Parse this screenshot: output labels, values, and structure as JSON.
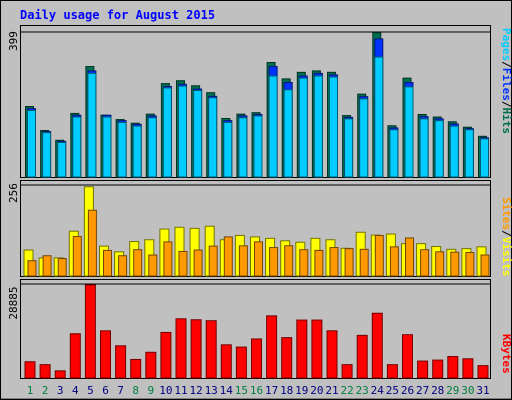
{
  "chart_data": {
    "type": "bar",
    "title": "Daily usage for August 2015",
    "days": [
      "1",
      "2",
      "3",
      "4",
      "5",
      "6",
      "7",
      "8",
      "9",
      "10",
      "11",
      "12",
      "13",
      "14",
      "15",
      "16",
      "17",
      "18",
      "19",
      "20",
      "21",
      "22",
      "23",
      "24",
      "25",
      "26",
      "27",
      "28",
      "29",
      "30",
      "31"
    ],
    "weekend_days": [
      "1",
      "2",
      "8",
      "9",
      "15",
      "16",
      "22",
      "23",
      "29",
      "30"
    ],
    "panels": [
      {
        "id": "hits_files_pages",
        "ymax_label": "399",
        "ymax": 399,
        "series": [
          {
            "name": "Hits",
            "color": "#006f4f",
            "values": [
              194,
              128,
              101,
              175,
              304,
              170,
              158,
              148,
              173,
              257,
              265,
              251,
              232,
              161,
              173,
              177,
              315,
              270,
              288,
              292,
              288,
              169,
              228,
              397,
              141,
              272,
              172,
              165,
              152,
              137,
              112
            ]
          },
          {
            "name": "Files",
            "color": "#0033ff",
            "values": [
              188,
              125,
              98,
              170,
              292,
              170,
              155,
              145,
              168,
              249,
              255,
              242,
              222,
              155,
              168,
              172,
              304,
              260,
              278,
              285,
              281,
              164,
              221,
              380,
              135,
              260,
              166,
              160,
              146,
              133,
              108
            ]
          },
          {
            "name": "Pages",
            "color": "#00ccff",
            "values": [
              183,
              122,
              95,
              165,
              285,
              165,
              150,
              140,
              163,
              245,
              250,
              238,
              218,
              150,
              163,
              168,
              278,
              240,
              272,
              278,
              275,
              160,
              215,
              330,
              130,
              248,
              160,
              155,
              140,
              130,
              105
            ]
          }
        ],
        "legend": [
          "Pages",
          "/",
          "Files",
          "/",
          "Hits"
        ]
      },
      {
        "id": "sites_visits",
        "ymax_label": "256",
        "ymax": 256,
        "series": [
          {
            "name": "Visits",
            "color": "#ffff00",
            "values": [
              73,
              51,
              51,
              126,
              251,
              84,
              68,
              97,
              102,
              132,
              137,
              134,
              140,
              102,
              114,
              110,
              106,
              99,
              95,
              106,
              102,
              78,
              123,
              115,
              118,
              91,
              91,
              83,
              75,
              77,
              82
            ]
          },
          {
            "name": "Sites",
            "color": "#ff9900",
            "values": [
              43,
              57,
              49,
              111,
              185,
              72,
              57,
              74,
              59,
              96,
              69,
              73,
              84,
              110,
              85,
              96,
              80,
              85,
              74,
              72,
              80,
              77,
              75,
              114,
              82,
              107,
              74,
              68,
              67,
              66,
              59
            ]
          }
        ],
        "legend": [
          "Sites",
          "/",
          "Visits"
        ]
      },
      {
        "id": "kbytes",
        "ymax_label": "28885",
        "ymax": 28885,
        "series": [
          {
            "name": "KBytes",
            "color": "#ff0000",
            "values": [
              5000,
              4100,
              2200,
              13600,
              28600,
              14500,
              9900,
              5700,
              7900,
              14000,
              18200,
              17900,
              17600,
              10200,
              9500,
              12000,
              19100,
              12400,
              17800,
              17800,
              14500,
              4100,
              13100,
              19900,
              4100,
              13300,
              5200,
              5500,
              6600,
              5900,
              3800
            ]
          }
        ],
        "legend": [
          "KBytes"
        ]
      }
    ],
    "colors": {
      "title": "#0000ff",
      "legend_hits": "#006f4f",
      "legend_files": "#0033ff",
      "legend_pages": "#00ccff",
      "legend_visits": "#ffff00",
      "legend_sites": "#ff9900",
      "legend_kbytes": "#ff0000",
      "weekday_label": "#000080",
      "weekend_label": "#00803f"
    }
  }
}
